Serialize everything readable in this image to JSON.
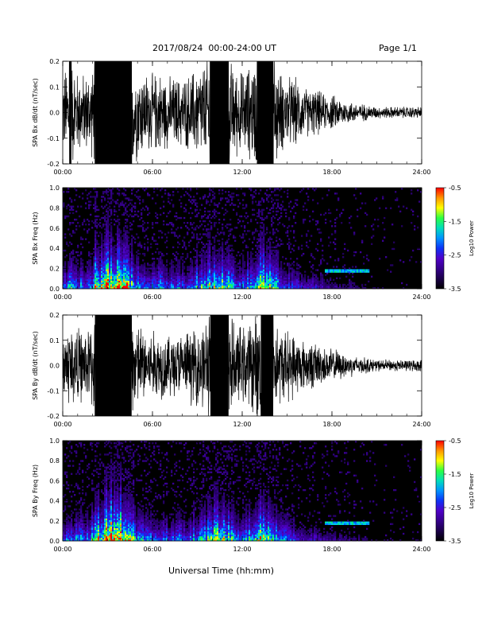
{
  "header": {
    "date_range": "2017/08/24  00:00-24:00 UT",
    "page": "Page 1/1"
  },
  "x_axis_title": "Universal Time (hh:mm)",
  "chart_data": [
    {
      "type": "line",
      "ylabel": "SPA Bx dB/dt (nT/sec)",
      "ylim": [
        -0.2,
        0.2
      ],
      "yticks": [
        "-0.2",
        "-0.1",
        "0.0",
        "0.1",
        "0.2"
      ],
      "xlim": [
        "00:00",
        "24:00"
      ],
      "xticks": [
        "00:00",
        "06:00",
        "12:00",
        "18:00",
        "24:00"
      ],
      "series": [
        {
          "color": "#000000",
          "hours": [
            0,
            0.5,
            1,
            1.5,
            2,
            2.2,
            2.5,
            3,
            3.5,
            4,
            4.5,
            5,
            5.5,
            6,
            6.5,
            7,
            7.5,
            8,
            8.5,
            9,
            9.5,
            10,
            10.5,
            11,
            11.5,
            12,
            12.5,
            13,
            13.5,
            14,
            14.5,
            15,
            15.5,
            16,
            16.5,
            17,
            17.5,
            18,
            18.5,
            19,
            19.5,
            20,
            20.5,
            21,
            21.5,
            22,
            22.5,
            23,
            23.5,
            24
          ],
          "amplitude": [
            0.13,
            0.2,
            0.14,
            0.13,
            0.15,
            0.2,
            0.2,
            0.2,
            0.2,
            0.2,
            0.2,
            0.16,
            0.14,
            0.13,
            0.14,
            0.12,
            0.12,
            0.12,
            0.13,
            0.16,
            0.17,
            0.2,
            0.2,
            0.2,
            0.15,
            0.14,
            0.16,
            0.19,
            0.2,
            0.2,
            0.14,
            0.12,
            0.12,
            0.09,
            0.08,
            0.08,
            0.06,
            0.06,
            0.05,
            0.04,
            0.035,
            0.03,
            0.025,
            0.02,
            0.02,
            0.02,
            0.02,
            0.02,
            0.02,
            0.02
          ]
        }
      ]
    },
    {
      "type": "heatmap",
      "ylabel": "SPA Bx Freq (Hz)",
      "ylim": [
        0.0,
        1.0
      ],
      "yticks": [
        "0.0",
        "0.2",
        "0.4",
        "0.6",
        "0.8",
        "1.0"
      ],
      "xlim": [
        "00:00",
        "24:00"
      ],
      "xticks": [
        "00:00",
        "06:00",
        "12:00",
        "18:00",
        "24:00"
      ],
      "colorbar": {
        "label": "Log10 Power",
        "range": [
          -3.5,
          -0.5
        ],
        "ticks": [
          "-0.5",
          "-1.5",
          "-2.5",
          "-3.5"
        ]
      },
      "activity_hours": [
        0,
        0.5,
        1,
        1.5,
        2,
        2.2,
        2.5,
        3,
        3.5,
        4,
        4.5,
        5,
        5.5,
        6,
        6.5,
        7,
        7.5,
        8,
        8.5,
        9,
        9.5,
        10,
        10.5,
        11,
        11.5,
        12,
        12.5,
        13,
        13.5,
        14,
        14.5,
        15,
        15.5,
        16,
        16.5,
        17,
        17.5,
        18,
        18.5,
        19,
        19.5,
        20,
        20.5,
        21,
        21.5,
        22,
        22.5,
        23,
        23.5,
        24
      ],
      "activity": [
        0.45,
        0.55,
        0.5,
        0.5,
        0.6,
        0.9,
        0.75,
        0.95,
        1.0,
        0.9,
        0.7,
        0.55,
        0.5,
        0.5,
        0.5,
        0.45,
        0.45,
        0.45,
        0.5,
        0.6,
        0.65,
        0.75,
        0.85,
        0.7,
        0.55,
        0.5,
        0.6,
        0.75,
        0.85,
        0.75,
        0.55,
        0.45,
        0.4,
        0.35,
        0.3,
        0.3,
        0.25,
        0.22,
        0.2,
        0.2,
        0.18,
        0.15,
        0.12,
        0.1,
        0.1,
        0.1,
        0.1,
        0.1,
        0.1,
        0.1
      ],
      "band": {
        "hours": [
          17.5,
          20.5
        ],
        "freq": 0.18
      }
    },
    {
      "type": "line",
      "ylabel": "SPA By dB/dt (nT/sec)",
      "ylim": [
        -0.2,
        0.2
      ],
      "yticks": [
        "-0.2",
        "-0.1",
        "0.0",
        "0.1",
        "0.2"
      ],
      "xlim": [
        "00:00",
        "24:00"
      ],
      "xticks": [
        "00:00",
        "06:00",
        "12:00",
        "18:00",
        "24:00"
      ],
      "series": [
        {
          "color": "#000000",
          "hours": [
            0,
            0.5,
            1,
            1.5,
            2,
            2.2,
            2.5,
            3,
            3.5,
            4,
            4.5,
            5,
            5.5,
            6,
            6.5,
            7,
            7.5,
            8,
            8.5,
            9,
            9.5,
            10,
            10.5,
            11,
            11.5,
            12,
            12.5,
            13,
            13.5,
            14,
            14.5,
            15,
            15.5,
            16,
            16.5,
            17,
            17.5,
            18,
            18.5,
            19,
            19.5,
            20,
            20.5,
            21,
            21.5,
            22,
            22.5,
            23,
            23.5,
            24
          ],
          "amplitude": [
            0.12,
            0.15,
            0.13,
            0.12,
            0.15,
            0.2,
            0.2,
            0.2,
            0.2,
            0.2,
            0.2,
            0.15,
            0.13,
            0.12,
            0.12,
            0.11,
            0.11,
            0.11,
            0.12,
            0.14,
            0.16,
            0.2,
            0.2,
            0.2,
            0.14,
            0.13,
            0.15,
            0.18,
            0.2,
            0.2,
            0.13,
            0.12,
            0.11,
            0.09,
            0.08,
            0.08,
            0.06,
            0.06,
            0.05,
            0.04,
            0.035,
            0.03,
            0.025,
            0.02,
            0.02,
            0.02,
            0.02,
            0.02,
            0.02,
            0.02
          ]
        }
      ]
    },
    {
      "type": "heatmap",
      "ylabel": "SPA By Freq (Hz)",
      "ylim": [
        0.0,
        1.0
      ],
      "yticks": [
        "0.0",
        "0.2",
        "0.4",
        "0.6",
        "0.8",
        "1.0"
      ],
      "xlim": [
        "00:00",
        "24:00"
      ],
      "xticks": [
        "00:00",
        "06:00",
        "12:00",
        "18:00",
        "24:00"
      ],
      "colorbar": {
        "label": "Log10 Power",
        "range": [
          -3.5,
          -0.5
        ],
        "ticks": [
          "-0.5",
          "-1.5",
          "-2.5",
          "-3.5"
        ]
      },
      "activity_hours": [
        0,
        0.5,
        1,
        1.5,
        2,
        2.2,
        2.5,
        3,
        3.5,
        4,
        4.5,
        5,
        5.5,
        6,
        6.5,
        7,
        7.5,
        8,
        8.5,
        9,
        9.5,
        10,
        10.5,
        11,
        11.5,
        12,
        12.5,
        13,
        13.5,
        14,
        14.5,
        15,
        15.5,
        16,
        16.5,
        17,
        17.5,
        18,
        18.5,
        19,
        19.5,
        20,
        20.5,
        21,
        21.5,
        22,
        22.5,
        23,
        23.5,
        24
      ],
      "activity": [
        0.45,
        0.5,
        0.5,
        0.5,
        0.6,
        0.9,
        0.75,
        0.95,
        1.0,
        0.9,
        0.7,
        0.55,
        0.5,
        0.5,
        0.5,
        0.45,
        0.45,
        0.45,
        0.5,
        0.6,
        0.65,
        0.75,
        0.85,
        0.7,
        0.55,
        0.5,
        0.6,
        0.75,
        0.85,
        0.75,
        0.55,
        0.45,
        0.4,
        0.35,
        0.3,
        0.3,
        0.25,
        0.22,
        0.2,
        0.2,
        0.18,
        0.15,
        0.12,
        0.1,
        0.1,
        0.1,
        0.1,
        0.1,
        0.1,
        0.1
      ],
      "band": {
        "hours": [
          17.5,
          20.5
        ],
        "freq": 0.18
      }
    }
  ]
}
